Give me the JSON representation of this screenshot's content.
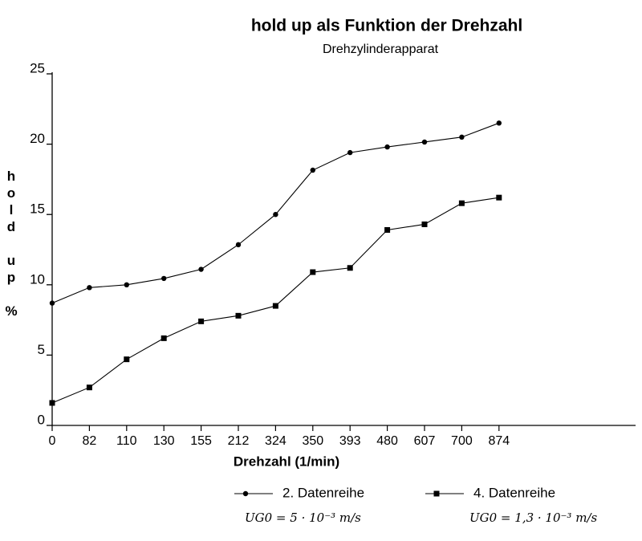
{
  "chart_data": {
    "type": "line",
    "title": "hold up als Funktion der Drehzahl",
    "subtitle": "Drehzylinderapparat",
    "x_label": "Drehzahl (1/min)",
    "y_label": "hold up %",
    "categories": [
      0,
      82,
      110,
      130,
      155,
      212,
      324,
      350,
      393,
      480,
      607,
      700,
      874
    ],
    "series": [
      {
        "name": "2. Datenreihe",
        "color": "#000000",
        "marker": "circle",
        "values": [
          8.7,
          9.8,
          10.0,
          10.45,
          11.1,
          12.85,
          15.0,
          18.15,
          19.4,
          19.8,
          20.15,
          20.5,
          21.5
        ]
      },
      {
        "name": "4. Datenreihe",
        "color": "#000000",
        "marker": "square",
        "values": [
          1.6,
          2.7,
          4.7,
          6.2,
          7.4,
          7.8,
          8.5,
          10.9,
          11.2,
          13.9,
          14.3,
          15.8,
          16.2
        ]
      }
    ],
    "annotations": [
      "UG0 = 5 · 10⁻³ m/s",
      "UG0 = 1,3 · 10⁻³ m/s"
    ],
    "ylim": [
      0,
      25
    ],
    "yticks": [
      0,
      5,
      10,
      15,
      20,
      25
    ],
    "grid": false,
    "legend": "bottom"
  }
}
